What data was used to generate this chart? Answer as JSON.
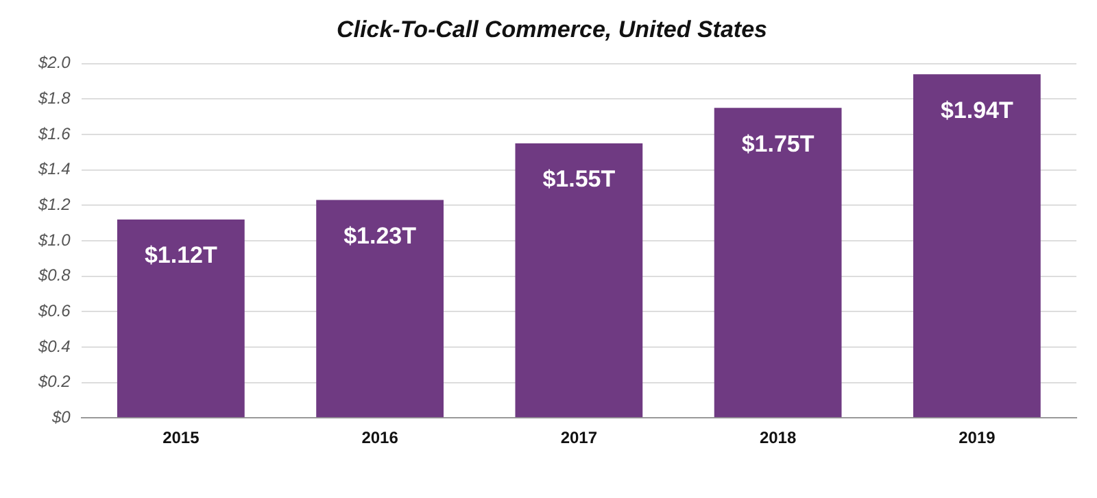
{
  "chart_data": {
    "type": "bar",
    "title": "Click-To-Call Commerce, United States",
    "categories": [
      "2015",
      "2016",
      "2017",
      "2018",
      "2019"
    ],
    "values": [
      1.12,
      1.23,
      1.55,
      1.75,
      1.94
    ],
    "value_labels": [
      "$1.12T",
      "$1.23T",
      "$1.55T",
      "$1.75T",
      "$1.94T"
    ],
    "color": "#6f3a82",
    "ylim": [
      0,
      2
    ],
    "yticks": [
      {
        "value": 0,
        "label": "$0"
      },
      {
        "value": 0.2,
        "label": "$0.2"
      },
      {
        "value": 0.4,
        "label": "$0.4"
      },
      {
        "value": 0.6,
        "label": "$0.6"
      },
      {
        "value": 0.8,
        "label": "$0.8"
      },
      {
        "value": 1,
        "label": "$1.0"
      },
      {
        "value": 1.2,
        "label": "$1.2"
      },
      {
        "value": 1.4,
        "label": "$1.4"
      },
      {
        "value": 1.6,
        "label": "$1.6"
      },
      {
        "value": 1.8,
        "label": "$1.8"
      },
      {
        "value": 2,
        "label": "$2.0"
      }
    ],
    "grid": "y"
  }
}
